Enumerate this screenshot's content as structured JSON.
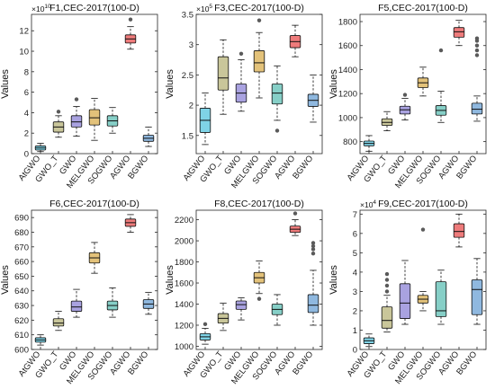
{
  "chart_data": [
    {
      "type": "box",
      "title": "F1,CEC-2017(100-D)",
      "ylabel": "Values",
      "xlabel": "",
      "scale_exponent": "10",
      "categories": [
        "AtGWO",
        "GWO_T",
        "GWO",
        "MELGWO",
        "SOGWO",
        "AGWO",
        "BGWO"
      ],
      "ylim": [
        0,
        13.6
      ],
      "yticks": [
        0,
        2,
        4,
        6,
        8,
        10,
        12
      ],
      "colors": [
        "#7fd3e6",
        "#c9c69a",
        "#a9a2e0",
        "#e3c27a",
        "#86cfc7",
        "#ee7b7b",
        "#8fb8df"
      ],
      "series": [
        {
          "name": "AtGWO",
          "min": 0.2,
          "q1": 0.35,
          "median": 0.55,
          "q3": 0.75,
          "max": 1.0,
          "outliers": []
        },
        {
          "name": "GWO_T",
          "min": 1.6,
          "q1": 2.1,
          "median": 2.6,
          "q3": 3.1,
          "max": 3.7,
          "outliers": [
            4.1
          ]
        },
        {
          "name": "GWO",
          "min": 1.7,
          "q1": 2.6,
          "median": 3.1,
          "q3": 3.7,
          "max": 4.6,
          "outliers": [
            5.3
          ]
        },
        {
          "name": "MELGWO",
          "min": 1.3,
          "q1": 2.8,
          "median": 3.5,
          "q3": 4.3,
          "max": 5.4,
          "outliers": []
        },
        {
          "name": "SOGWO",
          "min": 2.0,
          "q1": 2.7,
          "median": 3.2,
          "q3": 3.7,
          "max": 4.5,
          "outliers": []
        },
        {
          "name": "AGWO",
          "min": 10.2,
          "q1": 10.8,
          "median": 11.2,
          "q3": 11.6,
          "max": 12.4,
          "outliers": [
            13.1
          ]
        },
        {
          "name": "BGWO",
          "min": 0.7,
          "q1": 1.2,
          "median": 1.5,
          "q3": 1.8,
          "max": 2.6,
          "outliers": []
        }
      ]
    },
    {
      "type": "box",
      "title": "F3,CEC-2017(100-D)",
      "ylabel": "Values",
      "xlabel": "",
      "scale_exponent": "5",
      "categories": [
        "AtGWO",
        "GWO_T",
        "GWO",
        "MELGWO",
        "SOGWO",
        "AGWO",
        "BGWO"
      ],
      "ylim": [
        1.2,
        3.5
      ],
      "yticks": [
        1.5,
        2,
        2.5,
        3,
        3.5
      ],
      "colors": [
        "#7fd3e6",
        "#c9c69a",
        "#a9a2e0",
        "#e3c27a",
        "#86cfc7",
        "#ee7b7b",
        "#8fb8df"
      ],
      "series": [
        {
          "name": "AtGWO",
          "min": 1.35,
          "q1": 1.55,
          "median": 1.75,
          "q3": 1.95,
          "max": 2.2,
          "outliers": []
        },
        {
          "name": "GWO_T",
          "min": 1.85,
          "q1": 2.25,
          "median": 2.45,
          "q3": 2.8,
          "max": 3.08,
          "outliers": []
        },
        {
          "name": "GWO",
          "min": 1.9,
          "q1": 2.05,
          "median": 2.2,
          "q3": 2.35,
          "max": 2.75,
          "outliers": [
            2.85
          ]
        },
        {
          "name": "MELGWO",
          "min": 2.12,
          "q1": 2.55,
          "median": 2.7,
          "q3": 2.9,
          "max": 3.2,
          "outliers": [
            3.4
          ]
        },
        {
          "name": "SOGWO",
          "min": 1.75,
          "q1": 2.02,
          "median": 2.2,
          "q3": 2.35,
          "max": 2.65,
          "outliers": [
            1.58
          ]
        },
        {
          "name": "AGWO",
          "min": 2.8,
          "q1": 2.95,
          "median": 3.05,
          "q3": 3.15,
          "max": 3.32,
          "outliers": []
        },
        {
          "name": "BGWO",
          "min": 1.72,
          "q1": 1.98,
          "median": 2.08,
          "q3": 2.18,
          "max": 2.5,
          "outliers": []
        }
      ]
    },
    {
      "type": "box",
      "title": "F5,CEC-2017(100-D)",
      "ylabel": "Values",
      "xlabel": "",
      "scale_exponent": "",
      "categories": [
        "AtGWO",
        "GWO_T",
        "GWO",
        "MELGWO",
        "SOGWO",
        "AGWO",
        "BGWO"
      ],
      "ylim": [
        700,
        1860
      ],
      "yticks": [
        800,
        1000,
        1200,
        1400,
        1600,
        1800
      ],
      "colors": [
        "#7fd3e6",
        "#c9c69a",
        "#a9a2e0",
        "#e3c27a",
        "#86cfc7",
        "#ee7b7b",
        "#8fb8df"
      ],
      "series": [
        {
          "name": "AtGWO",
          "min": 720,
          "q1": 765,
          "median": 785,
          "q3": 805,
          "max": 850,
          "outliers": []
        },
        {
          "name": "GWO_T",
          "min": 890,
          "q1": 935,
          "median": 960,
          "q3": 990,
          "max": 1050,
          "outliers": []
        },
        {
          "name": "GWO",
          "min": 980,
          "q1": 1030,
          "median": 1065,
          "q3": 1095,
          "max": 1160,
          "outliers": [
            1190
          ]
        },
        {
          "name": "MELGWO",
          "min": 1180,
          "q1": 1250,
          "median": 1290,
          "q3": 1330,
          "max": 1420,
          "outliers": []
        },
        {
          "name": "SOGWO",
          "min": 960,
          "q1": 1020,
          "median": 1060,
          "q3": 1100,
          "max": 1220,
          "outliers": [
            1560
          ]
        },
        {
          "name": "AGWO",
          "min": 1600,
          "q1": 1670,
          "median": 1715,
          "q3": 1750,
          "max": 1810,
          "outliers": []
        },
        {
          "name": "BGWO",
          "min": 970,
          "q1": 1030,
          "median": 1070,
          "q3": 1120,
          "max": 1180,
          "outliers": [
            1520,
            1560,
            1600,
            1640,
            1660
          ]
        }
      ]
    },
    {
      "type": "box",
      "title": "F6,CEC-2017(100-D)",
      "ylabel": "Values",
      "xlabel": "",
      "scale_exponent": "",
      "categories": [
        "AtGWO",
        "GWO_T",
        "GWO",
        "MELGWO",
        "SOGWO",
        "AGWO",
        "BGWO"
      ],
      "ylim": [
        600,
        695
      ],
      "yticks": [
        600,
        610,
        620,
        630,
        640,
        650,
        660,
        670,
        680,
        690
      ],
      "colors": [
        "#7fd3e6",
        "#c9c69a",
        "#a9a2e0",
        "#e3c27a",
        "#86cfc7",
        "#ee7b7b",
        "#8fb8df"
      ],
      "series": [
        {
          "name": "AtGWO",
          "min": 603,
          "q1": 605,
          "median": 606.5,
          "q3": 608,
          "max": 610,
          "outliers": []
        },
        {
          "name": "GWO_T",
          "min": 613,
          "q1": 616,
          "median": 618,
          "q3": 621,
          "max": 626,
          "outliers": []
        },
        {
          "name": "GWO",
          "min": 622,
          "q1": 626,
          "median": 629,
          "q3": 633,
          "max": 641,
          "outliers": []
        },
        {
          "name": "MELGWO",
          "min": 652,
          "q1": 659,
          "median": 662.5,
          "q3": 666,
          "max": 673,
          "outliers": []
        },
        {
          "name": "SOGWO",
          "min": 622,
          "q1": 627,
          "median": 630,
          "q3": 633,
          "max": 642,
          "outliers": []
        },
        {
          "name": "AGWO",
          "min": 680,
          "q1": 684,
          "median": 686.5,
          "q3": 689,
          "max": 692,
          "outliers": []
        },
        {
          "name": "BGWO",
          "min": 624,
          "q1": 628,
          "median": 631,
          "q3": 634,
          "max": 639,
          "outliers": []
        }
      ]
    },
    {
      "type": "box",
      "title": "F8,CEC-2017(100-D)",
      "ylabel": "Values",
      "xlabel": "",
      "scale_exponent": "",
      "categories": [
        "AtGWO",
        "GWO_T",
        "GWO",
        "MELGWO",
        "SOGWO",
        "AGWO",
        "BGWO"
      ],
      "ylim": [
        970,
        2290
      ],
      "yticks": [
        1000,
        1200,
        1400,
        1600,
        1800,
        2000,
        2200
      ],
      "colors": [
        "#7fd3e6",
        "#c9c69a",
        "#a9a2e0",
        "#e3c27a",
        "#86cfc7",
        "#ee7b7b",
        "#8fb8df"
      ],
      "series": [
        {
          "name": "AtGWO",
          "min": 1020,
          "q1": 1060,
          "median": 1090,
          "q3": 1120,
          "max": 1170,
          "outliers": [
            1210
          ]
        },
        {
          "name": "GWO_T",
          "min": 1150,
          "q1": 1220,
          "median": 1265,
          "q3": 1310,
          "max": 1410,
          "outliers": []
        },
        {
          "name": "GWO",
          "min": 1250,
          "q1": 1350,
          "median": 1395,
          "q3": 1430,
          "max": 1460,
          "outliers": []
        },
        {
          "name": "MELGWO",
          "min": 1500,
          "q1": 1600,
          "median": 1650,
          "q3": 1700,
          "max": 1810,
          "outliers": [
            1450
          ]
        },
        {
          "name": "SOGWO",
          "min": 1200,
          "q1": 1300,
          "median": 1350,
          "q3": 1400,
          "max": 1490,
          "outliers": []
        },
        {
          "name": "AGWO",
          "min": 2050,
          "q1": 2080,
          "median": 2110,
          "q3": 2140,
          "max": 2200,
          "outliers": [
            2260
          ]
        },
        {
          "name": "BGWO",
          "min": 1200,
          "q1": 1320,
          "median": 1390,
          "q3": 1490,
          "max": 1720,
          "outliers": [
            1880,
            1920,
            1950,
            1980
          ]
        }
      ]
    },
    {
      "type": "box",
      "title": "F9,CEC-2017(100-D)",
      "ylabel": "Values",
      "xlabel": "",
      "scale_exponent": "4",
      "categories": [
        "AtGWO",
        "GWO_T",
        "GWO",
        "MELGWO",
        "SOGWO",
        "AGWO",
        "BGWO"
      ],
      "ylim": [
        0,
        7.2
      ],
      "yticks": [
        0,
        1,
        2,
        3,
        4,
        5,
        6,
        7
      ],
      "colors": [
        "#7fd3e6",
        "#c9c69a",
        "#a9a2e0",
        "#e3c27a",
        "#86cfc7",
        "#ee7b7b",
        "#8fb8df"
      ],
      "series": [
        {
          "name": "AtGWO",
          "min": 0.15,
          "q1": 0.3,
          "median": 0.45,
          "q3": 0.6,
          "max": 0.8,
          "outliers": []
        },
        {
          "name": "GWO_T",
          "min": 0.9,
          "q1": 1.1,
          "median": 1.5,
          "q3": 2.2,
          "max": 2.8,
          "outliers": [
            3.0,
            3.3,
            3.6,
            3.9
          ]
        },
        {
          "name": "GWO",
          "min": 1.3,
          "q1": 1.6,
          "median": 2.4,
          "q3": 3.4,
          "max": 4.6,
          "outliers": []
        },
        {
          "name": "MELGWO",
          "min": 2.0,
          "q1": 2.4,
          "median": 2.6,
          "q3": 2.8,
          "max": 3.0,
          "outliers": [
            6.2
          ]
        },
        {
          "name": "SOGWO",
          "min": 1.3,
          "q1": 1.7,
          "median": 2.0,
          "q3": 3.5,
          "max": 4.1,
          "outliers": []
        },
        {
          "name": "AGWO",
          "min": 5.3,
          "q1": 5.8,
          "median": 6.1,
          "q3": 6.5,
          "max": 7.0,
          "outliers": []
        },
        {
          "name": "BGWO",
          "min": 1.3,
          "q1": 1.8,
          "median": 3.1,
          "q3": 3.6,
          "max": 4.7,
          "outliers": []
        }
      ]
    }
  ]
}
